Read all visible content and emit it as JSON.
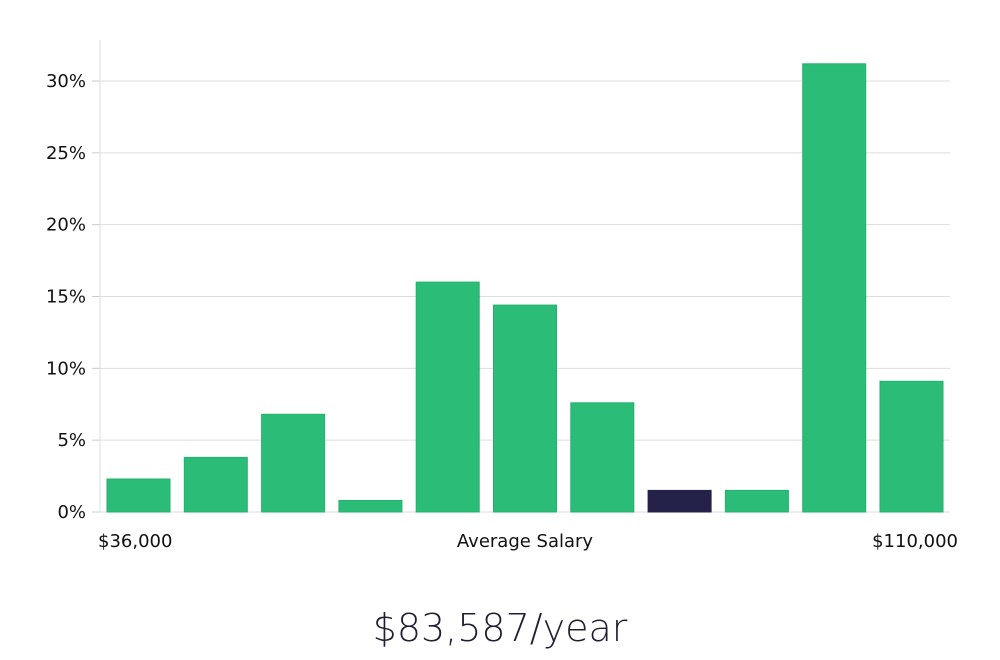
{
  "chart_data": {
    "type": "bar",
    "title": "",
    "xlabel": "Average Salary",
    "ylabel": "",
    "x_range_labels": {
      "min": "$36,000",
      "max": "$110,000"
    },
    "ylim": [
      0,
      33
    ],
    "yticks": [
      0,
      5,
      10,
      15,
      20,
      25,
      30
    ],
    "ytick_labels": [
      "0%",
      "5%",
      "10%",
      "15%",
      "20%",
      "25%",
      "30%"
    ],
    "grid": true,
    "values": [
      2.3,
      3.8,
      6.8,
      0.8,
      16.0,
      14.4,
      7.6,
      1.5,
      1.5,
      31.2,
      9.1
    ],
    "highlight_index": 7,
    "colors": {
      "bar": "#2bbd77",
      "bar_stroke": "#25b06e",
      "highlight": "#25224a",
      "grid": "#dddddd",
      "axis": "#cccccc",
      "text": "#111111"
    }
  },
  "average": {
    "label": "$83,587/year"
  }
}
